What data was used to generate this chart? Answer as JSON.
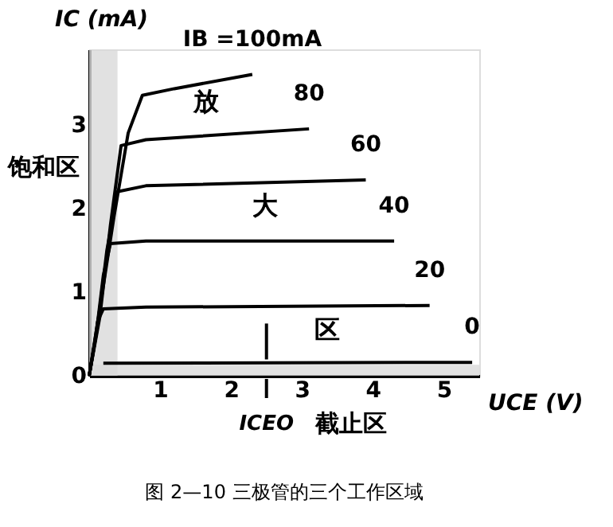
{
  "chart_data": {
    "type": "line",
    "title": "图 2—10 三极管的三个工作区域",
    "xlabel": "UCE (V)",
    "ylabel": "IC (mA)",
    "xlim": [
      0,
      5.5
    ],
    "ylim": [
      0,
      3.9
    ],
    "xticks": [
      1,
      2,
      3,
      4,
      5
    ],
    "yticks": [
      0,
      1,
      2,
      3
    ],
    "grid": false,
    "marker": "none",
    "line_style": "solid",
    "series": [
      {
        "name": "IB =100mA",
        "color": "#000000",
        "x": [
          0,
          0.15,
          0.35,
          0.55,
          0.75,
          1.2,
          2.3
        ],
        "values": [
          0,
          0.8,
          1.9,
          2.9,
          3.35,
          3.43,
          3.6
        ]
      },
      {
        "name": "80",
        "color": "#000000",
        "x": [
          0,
          0.15,
          0.3,
          0.45,
          0.8,
          3.1
        ],
        "values": [
          0,
          0.7,
          1.8,
          2.75,
          2.82,
          2.95
        ]
      },
      {
        "name": "60",
        "color": "#000000",
        "x": [
          0,
          0.12,
          0.25,
          0.4,
          0.8,
          3.9
        ],
        "values": [
          0,
          0.6,
          1.5,
          2.2,
          2.27,
          2.34
        ]
      },
      {
        "name": "40",
        "color": "#000000",
        "x": [
          0,
          0.1,
          0.2,
          0.3,
          0.8,
          4.3
        ],
        "values": [
          0,
          0.5,
          1.2,
          1.58,
          1.61,
          1.61
        ]
      },
      {
        "name": "20",
        "color": "#000000",
        "x": [
          0,
          0.06,
          0.12,
          0.2,
          0.8,
          4.8
        ],
        "values": [
          0,
          0.3,
          0.65,
          0.8,
          0.82,
          0.84
        ]
      },
      {
        "name": "0",
        "color": "#000000",
        "x": [
          0.2,
          5.4
        ],
        "values": [
          0.15,
          0.16
        ]
      }
    ],
    "bands": [
      {
        "axis": "x",
        "from": 0,
        "to": 0.4,
        "label": "饱和区",
        "color": "#d9d9d9"
      },
      {
        "axis": "y",
        "from": 0,
        "to": 0.13,
        "label": "截止区",
        "color": "#d9d9d9"
      }
    ],
    "ref_lines": [
      {
        "axis": "x",
        "value": 2.5,
        "label": "ICEO",
        "color": "#000000"
      }
    ],
    "annotations": [
      "放",
      "大",
      "区"
    ]
  }
}
